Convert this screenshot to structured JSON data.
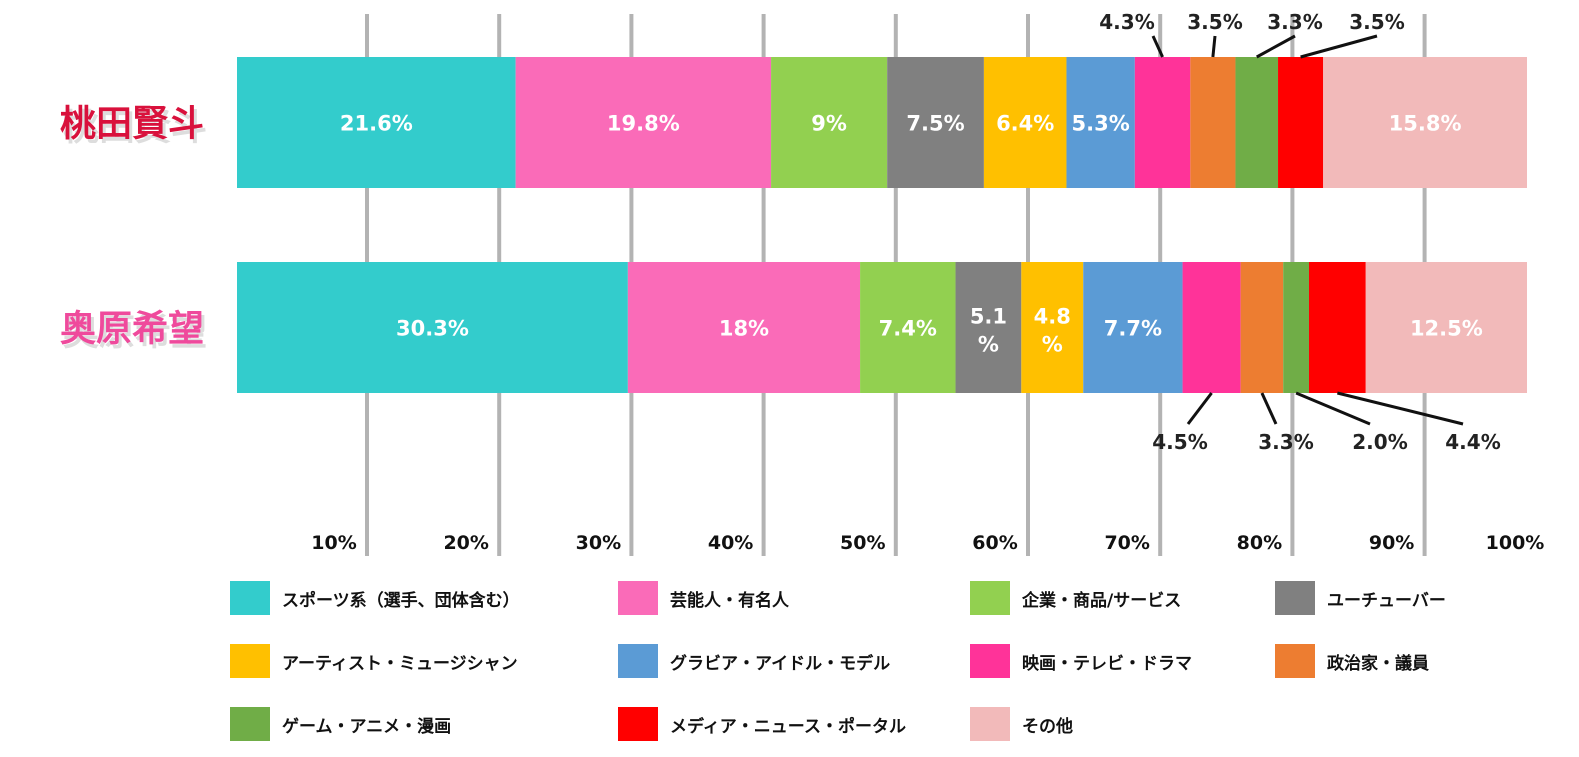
{
  "chart_data": {
    "type": "bar",
    "orientation": "horizontal",
    "stacked": true,
    "normalized": true,
    "x_tick_labels": [
      "10%",
      "20%",
      "30%",
      "40%",
      "50%",
      "60%",
      "70%",
      "80%",
      "90%",
      "100%"
    ],
    "xlim": [
      0,
      100
    ],
    "grid": true,
    "legend_position": "bottom",
    "categories": [
      "桃田賢斗",
      "奥原希望"
    ],
    "category_colors": [
      "#d9113c",
      "#ef4a9c"
    ],
    "series": [
      {
        "name": "スポーツ系（選手、団体含む）",
        "color": "#33cccc",
        "values": [
          21.6,
          30.3
        ],
        "labels": [
          "21.6%",
          "30.3%"
        ]
      },
      {
        "name": "芸能人・有名人",
        "color": "#fa6bb8",
        "values": [
          19.8,
          18
        ],
        "labels": [
          "19.8%",
          "18%"
        ]
      },
      {
        "name": "企業・商品/サービス",
        "color": "#92d050",
        "values": [
          9,
          7.4
        ],
        "labels": [
          "9%",
          "7.4%"
        ]
      },
      {
        "name": "ユーチューバー",
        "color": "#808080",
        "values": [
          7.5,
          5.1
        ],
        "labels": [
          "7.5%",
          "5.1\n%"
        ]
      },
      {
        "name": "アーティスト・ミュージシャン",
        "color": "#ffc000",
        "values": [
          6.4,
          4.8
        ],
        "labels": [
          "6.4%",
          "4.8\n%"
        ]
      },
      {
        "name": "グラビア・アイドル・モデル",
        "color": "#5b9bd5",
        "values": [
          5.3,
          7.7
        ],
        "labels": [
          "5.3%",
          "7.7%"
        ]
      },
      {
        "name": "映画・テレビ・ドラマ",
        "color": "#ff3399",
        "values": [
          4.3,
          4.5
        ],
        "labels": [
          "4.3%",
          "4.5%"
        ]
      },
      {
        "name": "政治家・議員",
        "color": "#ed7d31",
        "values": [
          3.5,
          3.3
        ],
        "labels": [
          "3.5%",
          "3.3%"
        ]
      },
      {
        "name": "ゲーム・アニメ・漫画",
        "color": "#70ad47",
        "values": [
          3.3,
          2.0
        ],
        "labels": [
          "3.3%",
          "2.0%"
        ]
      },
      {
        "name": "メディア・ニュース・ポータル",
        "color": "#ff0000",
        "values": [
          3.5,
          4.4
        ],
        "labels": [
          "3.5%",
          "4.4%"
        ]
      },
      {
        "name": "その他",
        "color": "#f2baba",
        "values": [
          15.8,
          12.5
        ],
        "labels": [
          "15.8%",
          "12.5%"
        ]
      }
    ]
  }
}
